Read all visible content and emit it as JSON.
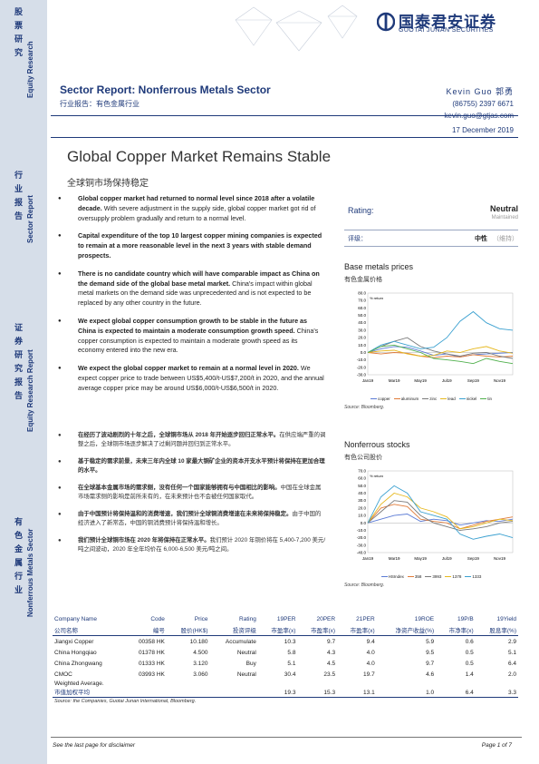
{
  "brand": {
    "name_cn": "国泰君安证券",
    "name_en": "GUOTAI JUNAN SECURITIES",
    "primary_color": "#1f3a7a"
  },
  "sidebar": [
    {
      "cn": "股票研究",
      "en": "Equity Research"
    },
    {
      "cn": "行业报告",
      "en": "Sector Report"
    },
    {
      "cn": "证券研究报告",
      "en": "Equity Research Report"
    },
    {
      "cn": "有色金属行业",
      "en": "Nonferrous Metals Sector"
    }
  ],
  "header": {
    "report_type": "Sector Report:  Nonferrous Metals Sector",
    "report_type_cn": "行业报告：有色金属行业",
    "author_name": "Kevin Guo  郭勇",
    "author_phone": "(86755) 2397 6671",
    "author_email": "kevin.guo@gtjas.com",
    "date": "17 December 2019"
  },
  "title": "Global Copper Market Remains Stable",
  "title_cn": "全球铜市场保持稳定",
  "bullets": [
    {
      "bold": "Global copper market had returned to normal level since 2018 after a volatile decade.",
      "text": " With severe adjustment in the supply side, global copper market got rid of oversupply problem gradually and return to a normal level."
    },
    {
      "bold": "Capital expenditure of the top 10 largest copper mining companies is expected to remain at a more reasonable level in the next 3 years with stable demand prospects.",
      "text": ""
    },
    {
      "bold": "There is no candidate country which will have comparable impact as China on the demand side of the global base metal market.",
      "text": " China's impact within global metal markets on the demand side was unprecedented and is not expected to be replaced by any other country in the future."
    },
    {
      "bold": "We expect global copper consumption growth to be stable in the future as China is expected to maintain a moderate consumption growth speed.",
      "text": " China's copper consumption is expected to maintain a moderate growth speed as its economy entered into the new era."
    },
    {
      "bold": "We expect the global copper market to remain at a normal level in 2020.",
      "text": " We expect copper price to trade between US$5,400/t-US$7,200/t in 2020, and the annual average copper price may be around US$6,000/t-US$6,500/t in 2020."
    }
  ],
  "bullets_cn": [
    {
      "bold": "在经历了波动剧烈的十年之后，全球铜市场从 2018 年开始逐步回归正常水平。",
      "text": "在供应端严重的调整之后，全球铜市场逐步解决了过剩问题并回归到正常水平。"
    },
    {
      "bold": "基于稳定的需求前景，未来三年内全球 10 家最大铜矿企业的资本开支水平预计将保持在更加合理的水平。",
      "text": ""
    },
    {
      "bold": "在全球基本金属市场的需求侧，没有任何一个国家能够拥有与中国相比的影响。",
      "text": "中国在全球金属市场需求侧的影响是前所未有的，在未来预计也不会被任何国家取代。"
    },
    {
      "bold": "由于中国预计将保持温和的消费增速，我们预计全球铜消费增速在未来将保持稳定。",
      "text": "由于中国的经济进入了新常态，中国的铜消费预计将保持温和增长。"
    },
    {
      "bold": "我们预计全球铜市场在 2020 年将保持在正常水平。",
      "text": "我们预计 2020 年铜价将在 5,400-7,200 美元/吨之间波动，2020 年全年均价在 6,000-6,500 美元/吨之间。"
    }
  ],
  "rating": {
    "label": "Rating:",
    "value": "Neutral",
    "maintained": "Maintained",
    "label_cn": "评级：",
    "value_cn": "中性",
    "maintained_cn": "（维持）"
  },
  "chart1": {
    "title": "Base metals prices",
    "subtitle": "有色金属价格",
    "source": "Source: Bloomberg.",
    "chart_data": {
      "type": "line",
      "ylabel": "% return",
      "ylim": [
        -30,
        80
      ],
      "yticks": [
        "80.0",
        "70.0",
        "60.0",
        "50.0",
        "40.0",
        "30.0",
        "20.0",
        "10.0",
        "0.0",
        "-10.0",
        "-20.0",
        "-30.0"
      ],
      "xticks": [
        "Jan19",
        "Mar19",
        "May19",
        "Jul19",
        "Sep19",
        "Nov19"
      ],
      "x": [
        "Jan19",
        "Feb19",
        "Mar19",
        "Apr19",
        "May19",
        "Jun19",
        "Jul19",
        "Aug19",
        "Sep19",
        "Oct19",
        "Nov19",
        "Dec19"
      ],
      "series": [
        {
          "name": "copper",
          "color": "#5b7bd5",
          "values": [
            0,
            5,
            8,
            7,
            2,
            -4,
            -2,
            -6,
            -3,
            -2,
            -1,
            0
          ]
        },
        {
          "name": "aluminum",
          "color": "#e07b39",
          "values": [
            0,
            -2,
            0,
            -1,
            -5,
            -7,
            -5,
            -6,
            -3,
            -5,
            -6,
            -5
          ]
        },
        {
          "name": "zinc",
          "color": "#7a7a7a",
          "values": [
            0,
            8,
            15,
            20,
            8,
            2,
            -2,
            -5,
            -1,
            0,
            -5,
            -8
          ]
        },
        {
          "name": "lead",
          "color": "#e6b81e",
          "values": [
            0,
            2,
            3,
            -2,
            -5,
            -4,
            2,
            0,
            5,
            8,
            2,
            -1
          ]
        },
        {
          "name": "nickel",
          "color": "#3aa0d0",
          "values": [
            0,
            10,
            15,
            10,
            5,
            7,
            20,
            42,
            55,
            40,
            32,
            30
          ]
        },
        {
          "name": "tin",
          "color": "#50b04d",
          "values": [
            0,
            8,
            10,
            5,
            0,
            -8,
            -10,
            -12,
            -15,
            -8,
            -12,
            -15
          ]
        }
      ]
    }
  },
  "chart2": {
    "title": "Nonferrous stocks",
    "subtitle": "有色公司股价",
    "source": "Source: Bloomberg.",
    "chart_data": {
      "type": "line",
      "ylabel": "% return",
      "ylim": [
        -40,
        70
      ],
      "yticks": [
        "70.0",
        "60.0",
        "50.0",
        "40.0",
        "30.0",
        "20.0",
        "10.0",
        "0.0",
        "-10.0",
        "-20.0",
        "-30.0",
        "-40.0"
      ],
      "xticks": [
        "Jan19",
        "Mar19",
        "May19",
        "Jul19",
        "Sep19",
        "Nov19"
      ],
      "x": [
        "Jan19",
        "Feb19",
        "Mar19",
        "Apr19",
        "May19",
        "Jun19",
        "Jul19",
        "Aug19",
        "Sep19",
        "Oct19",
        "Nov19",
        "Dec19"
      ],
      "series": [
        {
          "name": "HSIndex",
          "color": "#5b7bd5",
          "values": [
            0,
            5,
            10,
            12,
            2,
            5,
            3,
            -3,
            0,
            3,
            2,
            5
          ]
        },
        {
          "name": "358",
          "color": "#e07b39",
          "values": [
            0,
            20,
            25,
            22,
            5,
            2,
            0,
            -8,
            -3,
            2,
            5,
            8
          ]
        },
        {
          "name": "3993",
          "color": "#7a7a7a",
          "values": [
            0,
            15,
            30,
            28,
            10,
            0,
            -5,
            -10,
            -8,
            -5,
            0,
            2
          ]
        },
        {
          "name": "1378",
          "color": "#e6b81e",
          "values": [
            0,
            25,
            40,
            35,
            20,
            15,
            8,
            -8,
            -5,
            0,
            5,
            3
          ]
        },
        {
          "name": "1333",
          "color": "#3aa0d0",
          "values": [
            0,
            35,
            50,
            40,
            15,
            10,
            5,
            -15,
            -22,
            -18,
            -15,
            -20
          ]
        }
      ]
    }
  },
  "table": {
    "header": [
      "Company Name",
      "Code",
      "Price",
      "Rating",
      "19PER",
      "20PER",
      "21PER",
      "19ROE",
      "19P/B",
      "19Yield"
    ],
    "header_cn": [
      "公司名称",
      "编号",
      "股价(HK$)",
      "投资评级",
      "市盈率(x)",
      "市盈率(x)",
      "市盈率(x)",
      "净资产收益(%)",
      "市净率(x)",
      "股息率(%)"
    ],
    "rows": [
      [
        "Jiangxi Copper",
        "00358 HK",
        "10.180",
        "Accumulate",
        "10.3",
        "9.7",
        "9.4",
        "5.9",
        "0.6",
        "2.9"
      ],
      [
        "China Hongqiao",
        "01378 HK",
        "4.500",
        "Neutral",
        "5.8",
        "4.3",
        "4.0",
        "9.5",
        "0.5",
        "5.1"
      ],
      [
        "China Zhongwang",
        "01333 HK",
        "3.120",
        "Buy",
        "5.1",
        "4.5",
        "4.0",
        "9.7",
        "0.5",
        "6.4"
      ],
      [
        "CMOC",
        "03993 HK",
        "3.060",
        "Neutral",
        "30.4",
        "23.5",
        "19.7",
        "4.6",
        "1.4",
        "2.0"
      ]
    ],
    "avg_label": "Weighted      Average.",
    "avg_label_cn": "市值加权平均",
    "avg": [
      "19.3",
      "15.3",
      "13.1",
      "1.0",
      "6.4",
      "3.3"
    ],
    "source": "Source: the Companies, Guotai Junan International, Bloomberg."
  },
  "footer": {
    "left": "See the last page for disclaimer",
    "right": "Page 1 of 7"
  }
}
